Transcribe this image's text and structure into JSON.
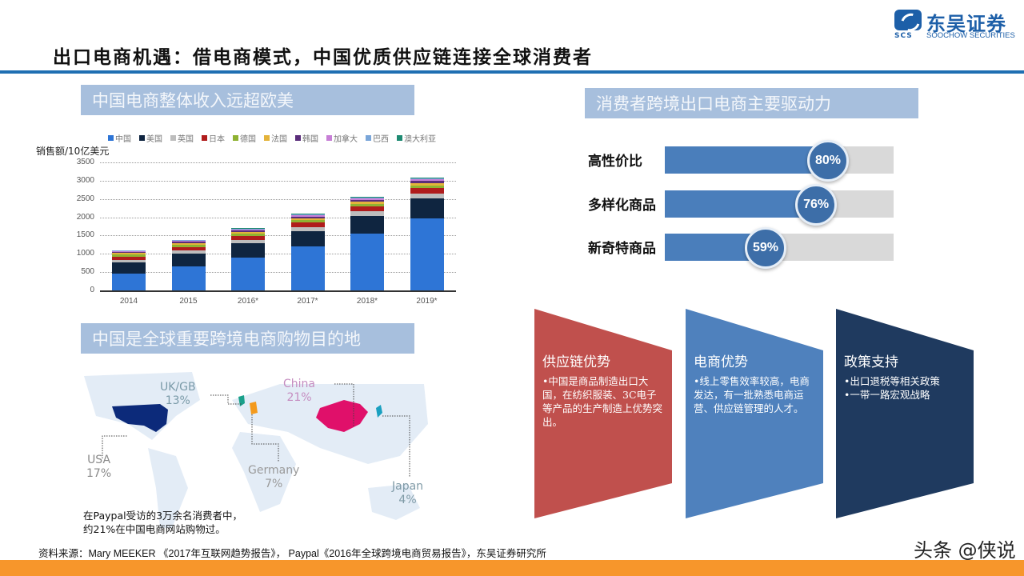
{
  "header": {
    "title": "出口电商机遇：借电商模式，中国优质供应链连接全球消费者",
    "logo": {
      "mark": "SCS",
      "name_cn": "东吴证券",
      "name_en": "SOOCHOW SECURITIES"
    }
  },
  "sections": {
    "revenue": "中国电商整体收入远超欧美",
    "drivers": "消费者跨境出口电商主要驱动力",
    "destination": "中国是全球重要跨境电商购物目的地"
  },
  "chart_data": {
    "type": "bar",
    "stacked": true,
    "title": "中国电商整体收入远超欧美",
    "ylabel": "销售额/10亿美元",
    "xlabel": "",
    "ylim": [
      0,
      3500
    ],
    "yticks": [
      0,
      500,
      1000,
      1500,
      2000,
      2500,
      3000,
      3500
    ],
    "grid": true,
    "legend_position": "top",
    "categories": [
      "2014",
      "2015",
      "2016*",
      "2017*",
      "2018*",
      "2019*"
    ],
    "series": [
      {
        "name": "中国",
        "color": "#2e75d6",
        "values": [
          460,
          660,
          900,
          1200,
          1560,
          1970
        ]
      },
      {
        "name": "美国",
        "color": "#0f2540",
        "values": [
          300,
          340,
          380,
          420,
          480,
          540
        ]
      },
      {
        "name": "英国",
        "color": "#bdbdbd",
        "values": [
          80,
          90,
          100,
          115,
          130,
          145
        ]
      },
      {
        "name": "日本",
        "color": "#b01c1c",
        "values": [
          90,
          100,
          110,
          120,
          130,
          140
        ]
      },
      {
        "name": "德国",
        "color": "#8fb232",
        "values": [
          50,
          55,
          60,
          65,
          72,
          80
        ]
      },
      {
        "name": "法国",
        "color": "#e4b33a",
        "values": [
          40,
          45,
          50,
          55,
          60,
          65
        ]
      },
      {
        "name": "韩国",
        "color": "#5a2d7a",
        "values": [
          30,
          35,
          40,
          45,
          50,
          55
        ]
      },
      {
        "name": "加拿大",
        "color": "#c77fd6",
        "values": [
          25,
          28,
          32,
          36,
          40,
          44
        ]
      },
      {
        "name": "巴西",
        "color": "#7aa6d9",
        "values": [
          15,
          17,
          19,
          21,
          23,
          25
        ]
      },
      {
        "name": "澳大利亚",
        "color": "#1e8a72",
        "values": [
          15,
          17,
          19,
          21,
          23,
          25
        ]
      }
    ]
  },
  "drivers": [
    {
      "label": "高性价比",
      "value": 80,
      "display": "80%"
    },
    {
      "label": "多样化商品",
      "value": 76,
      "display": "76%"
    },
    {
      "label": "新奇特商品",
      "value": 59,
      "display": "59%"
    }
  ],
  "map": {
    "labels": [
      {
        "country": "UK/GB",
        "pct": "13%",
        "color": "#7a9aa8"
      },
      {
        "country": "China",
        "pct": "21%",
        "color": "#c58dc0"
      },
      {
        "country": "USA",
        "pct": "17%",
        "color": "#8a8a8a"
      },
      {
        "country": "Germany",
        "pct": "7%",
        "color": "#9a9a9a"
      },
      {
        "country": "Japan",
        "pct": "4%",
        "color": "#7f9aa6"
      }
    ],
    "note_line1": "在Paypal受访的3万余名消费者中，",
    "note_line2": "约21%在中国电商网站购物过。"
  },
  "pillars": [
    {
      "title": "供应链优势",
      "body": "•中国是商品制造出口大国，在纺织服装、3C电子等产品的生产制造上优势突出。",
      "color": "#c0504d"
    },
    {
      "title": "电商优势",
      "body": "•线上零售效率较高，电商发达，有一批熟悉电商运营、供应链管理的人才。",
      "color": "#4f81bd"
    },
    {
      "title": "政策支持",
      "bullets": [
        "•出口退税等相关政策",
        "•一带一路宏观战略"
      ],
      "color": "#1f3a5f"
    }
  ],
  "footer": {
    "source": "资料来源：Mary MEEKER 《2017年互联网趋势报告》， Paypal《2016年全球跨境电商贸易报告》，东吴证券研究所",
    "watermark": "头条 @侠说",
    "accent": "#f7962b"
  }
}
